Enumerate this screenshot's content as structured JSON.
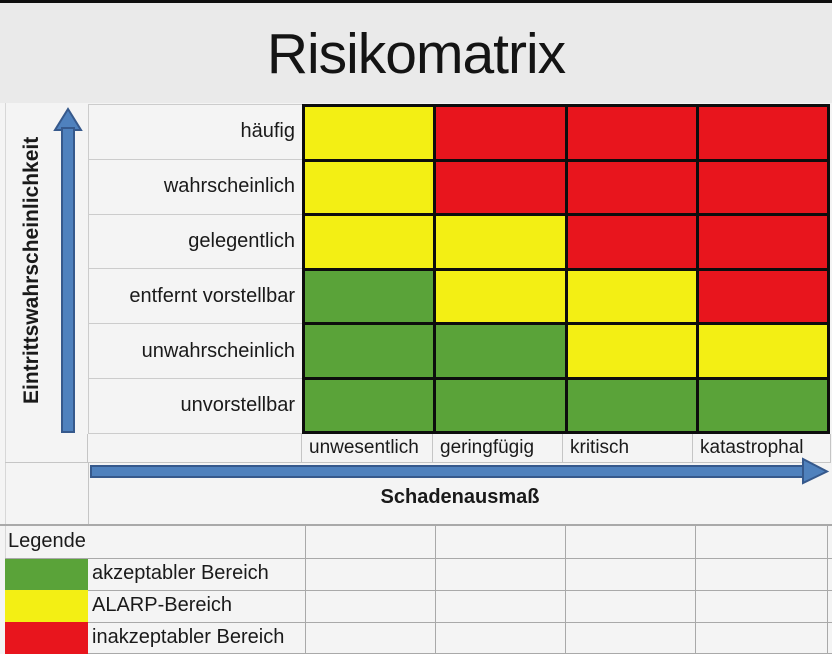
{
  "title": "Risikomatrix",
  "chart_data": {
    "type": "heatmap",
    "title": "Risikomatrix",
    "rows": [
      "häufig",
      "wahrscheinlich",
      "gelegentlich",
      "entfernt vorstellbar",
      "unwahrscheinlich",
      "unvorstellbar"
    ],
    "columns": [
      "unwesentlich",
      "geringfügig",
      "kritisch",
      "katastrophal"
    ],
    "cells": [
      [
        "yellow",
        "red",
        "red",
        "red"
      ],
      [
        "yellow",
        "red",
        "red",
        "red"
      ],
      [
        "yellow",
        "yellow",
        "red",
        "red"
      ],
      [
        "green",
        "yellow",
        "yellow",
        "red"
      ],
      [
        "green",
        "green",
        "yellow",
        "yellow"
      ],
      [
        "green",
        "green",
        "green",
        "green"
      ]
    ],
    "ylabel": "Eintrittswahrscheinlichkeit",
    "xlabel": "Schadenausmaß",
    "legend_position": "bottom-left",
    "grid": true
  },
  "colors": {
    "green": "#5aa339",
    "yellow": "#f3ef14",
    "red": "#e8151d",
    "arrow_fill": "#4f81bd",
    "arrow_stroke": "#36598c",
    "bg": "#f4f4f4"
  },
  "icons": {
    "y_axis_arrow": "up-arrow",
    "x_axis_arrow": "right-arrow"
  },
  "legend": {
    "header": "Legende",
    "items": [
      {
        "color": "green",
        "label": "akzeptabler Bereich"
      },
      {
        "color": "yellow",
        "label": "ALARP-Bereich"
      },
      {
        "color": "red",
        "label": "inakzeptabler Bereich"
      }
    ]
  }
}
